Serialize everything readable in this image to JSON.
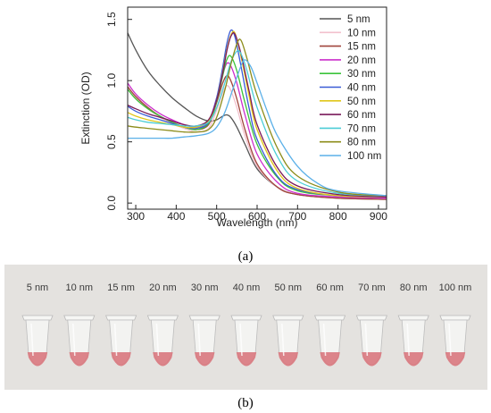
{
  "panel_labels": {
    "a": "(a)",
    "b": "(b)"
  },
  "chart_data": {
    "type": "line",
    "xlabel": "Wavelength (nm)",
    "ylabel": "Extinction (OD)",
    "xlim": [
      280,
      920
    ],
    "ylim": [
      -0.05,
      1.6
    ],
    "x_ticks": [
      300,
      400,
      500,
      600,
      700,
      800,
      900
    ],
    "y_ticks": [
      0.0,
      0.5,
      1.0,
      1.5
    ],
    "x_tick_labels": [
      "300",
      "400",
      "500",
      "600",
      "700",
      "800",
      "900"
    ],
    "y_tick_labels": [
      "0.0",
      "0.5",
      "1.0",
      "1.5"
    ],
    "grid": false,
    "legend_position": "top-right",
    "series": [
      {
        "name": "5 nm",
        "color": "#555555",
        "points": [
          [
            280,
            1.39
          ],
          [
            300,
            1.25
          ],
          [
            330,
            1.08
          ],
          [
            360,
            0.96
          ],
          [
            390,
            0.86
          ],
          [
            420,
            0.78
          ],
          [
            450,
            0.71
          ],
          [
            480,
            0.67
          ],
          [
            500,
            0.68
          ],
          [
            515,
            0.71
          ],
          [
            525,
            0.72
          ],
          [
            535,
            0.7
          ],
          [
            550,
            0.62
          ],
          [
            570,
            0.48
          ],
          [
            600,
            0.28
          ],
          [
            650,
            0.13
          ],
          [
            700,
            0.07
          ],
          [
            800,
            0.04
          ],
          [
            920,
            0.03
          ]
        ]
      },
      {
        "name": "10 nm",
        "color": "#f2c0cc",
        "points": [
          [
            280,
            0.95
          ],
          [
            300,
            0.86
          ],
          [
            330,
            0.77
          ],
          [
            360,
            0.7
          ],
          [
            390,
            0.65
          ],
          [
            420,
            0.61
          ],
          [
            450,
            0.58
          ],
          [
            480,
            0.61
          ],
          [
            500,
            0.76
          ],
          [
            515,
            0.9
          ],
          [
            525,
            0.96
          ],
          [
            535,
            0.92
          ],
          [
            550,
            0.78
          ],
          [
            570,
            0.55
          ],
          [
            600,
            0.3
          ],
          [
            650,
            0.13
          ],
          [
            700,
            0.07
          ],
          [
            800,
            0.04
          ],
          [
            920,
            0.03
          ]
        ]
      },
      {
        "name": "15 nm",
        "color": "#a0453c",
        "points": [
          [
            280,
            0.95
          ],
          [
            300,
            0.87
          ],
          [
            330,
            0.78
          ],
          [
            360,
            0.71
          ],
          [
            390,
            0.66
          ],
          [
            420,
            0.62
          ],
          [
            450,
            0.6
          ],
          [
            480,
            0.64
          ],
          [
            500,
            0.82
          ],
          [
            515,
            0.98
          ],
          [
            525,
            1.04
          ],
          [
            535,
            1.0
          ],
          [
            550,
            0.85
          ],
          [
            570,
            0.6
          ],
          [
            600,
            0.32
          ],
          [
            650,
            0.13
          ],
          [
            700,
            0.07
          ],
          [
            800,
            0.04
          ],
          [
            920,
            0.03
          ]
        ]
      },
      {
        "name": "20 nm",
        "color": "#cc2fcc",
        "points": [
          [
            280,
            0.98
          ],
          [
            300,
            0.89
          ],
          [
            330,
            0.8
          ],
          [
            360,
            0.73
          ],
          [
            390,
            0.68
          ],
          [
            420,
            0.64
          ],
          [
            450,
            0.62
          ],
          [
            480,
            0.67
          ],
          [
            500,
            0.86
          ],
          [
            515,
            1.05
          ],
          [
            525,
            1.14
          ],
          [
            535,
            1.12
          ],
          [
            550,
            0.98
          ],
          [
            570,
            0.72
          ],
          [
            600,
            0.4
          ],
          [
            650,
            0.17
          ],
          [
            700,
            0.08
          ],
          [
            800,
            0.05
          ],
          [
            920,
            0.04
          ]
        ]
      },
      {
        "name": "30 nm",
        "color": "#3ac33a",
        "points": [
          [
            280,
            0.93
          ],
          [
            300,
            0.85
          ],
          [
            330,
            0.77
          ],
          [
            360,
            0.71
          ],
          [
            390,
            0.66
          ],
          [
            420,
            0.62
          ],
          [
            450,
            0.6
          ],
          [
            480,
            0.65
          ],
          [
            500,
            0.83
          ],
          [
            515,
            1.04
          ],
          [
            525,
            1.17
          ],
          [
            535,
            1.2
          ],
          [
            550,
            1.08
          ],
          [
            570,
            0.82
          ],
          [
            600,
            0.48
          ],
          [
            650,
            0.21
          ],
          [
            700,
            0.1
          ],
          [
            800,
            0.06
          ],
          [
            920,
            0.05
          ]
        ]
      },
      {
        "name": "40 nm",
        "color": "#3a5bd6",
        "points": [
          [
            280,
            0.79
          ],
          [
            300,
            0.75
          ],
          [
            330,
            0.71
          ],
          [
            360,
            0.68
          ],
          [
            390,
            0.65
          ],
          [
            420,
            0.62
          ],
          [
            450,
            0.61
          ],
          [
            480,
            0.66
          ],
          [
            500,
            0.86
          ],
          [
            515,
            1.11
          ],
          [
            525,
            1.3
          ],
          [
            535,
            1.41
          ],
          [
            545,
            1.36
          ],
          [
            560,
            1.12
          ],
          [
            580,
            0.78
          ],
          [
            600,
            0.52
          ],
          [
            650,
            0.22
          ],
          [
            700,
            0.11
          ],
          [
            800,
            0.06
          ],
          [
            920,
            0.05
          ]
        ]
      },
      {
        "name": "50 nm",
        "color": "#e0c61a",
        "points": [
          [
            280,
            0.74
          ],
          [
            300,
            0.71
          ],
          [
            330,
            0.68
          ],
          [
            360,
            0.66
          ],
          [
            390,
            0.64
          ],
          [
            420,
            0.62
          ],
          [
            450,
            0.62
          ],
          [
            480,
            0.67
          ],
          [
            500,
            0.84
          ],
          [
            515,
            1.07
          ],
          [
            525,
            1.25
          ],
          [
            535,
            1.37
          ],
          [
            545,
            1.39
          ],
          [
            560,
            1.2
          ],
          [
            580,
            0.88
          ],
          [
            600,
            0.6
          ],
          [
            650,
            0.26
          ],
          [
            700,
            0.12
          ],
          [
            800,
            0.06
          ],
          [
            920,
            0.05
          ]
        ]
      },
      {
        "name": "60 nm",
        "color": "#7a1a5a",
        "points": [
          [
            280,
            0.8
          ],
          [
            300,
            0.77
          ],
          [
            330,
            0.73
          ],
          [
            360,
            0.7
          ],
          [
            390,
            0.67
          ],
          [
            420,
            0.64
          ],
          [
            450,
            0.63
          ],
          [
            480,
            0.68
          ],
          [
            500,
            0.84
          ],
          [
            515,
            1.06
          ],
          [
            525,
            1.24
          ],
          [
            535,
            1.36
          ],
          [
            545,
            1.38
          ],
          [
            560,
            1.22
          ],
          [
            580,
            0.92
          ],
          [
            600,
            0.64
          ],
          [
            650,
            0.29
          ],
          [
            700,
            0.14
          ],
          [
            800,
            0.07
          ],
          [
            920,
            0.05
          ]
        ]
      },
      {
        "name": "70 nm",
        "color": "#4ccdd6",
        "points": [
          [
            280,
            0.7
          ],
          [
            300,
            0.68
          ],
          [
            330,
            0.66
          ],
          [
            360,
            0.65
          ],
          [
            390,
            0.64
          ],
          [
            420,
            0.63
          ],
          [
            450,
            0.63
          ],
          [
            480,
            0.66
          ],
          [
            500,
            0.78
          ],
          [
            520,
            0.98
          ],
          [
            535,
            1.15
          ],
          [
            550,
            1.24
          ],
          [
            560,
            1.22
          ],
          [
            575,
            1.08
          ],
          [
            600,
            0.78
          ],
          [
            650,
            0.38
          ],
          [
            700,
            0.18
          ],
          [
            800,
            0.08
          ],
          [
            920,
            0.06
          ]
        ]
      },
      {
        "name": "80 nm",
        "color": "#8c8c1a",
        "points": [
          [
            280,
            0.63
          ],
          [
            300,
            0.62
          ],
          [
            330,
            0.61
          ],
          [
            360,
            0.6
          ],
          [
            390,
            0.59
          ],
          [
            420,
            0.58
          ],
          [
            450,
            0.58
          ],
          [
            480,
            0.6
          ],
          [
            500,
            0.7
          ],
          [
            520,
            0.92
          ],
          [
            535,
            1.13
          ],
          [
            550,
            1.3
          ],
          [
            560,
            1.33
          ],
          [
            575,
            1.18
          ],
          [
            600,
            0.88
          ],
          [
            650,
            0.45
          ],
          [
            700,
            0.22
          ],
          [
            800,
            0.09
          ],
          [
            920,
            0.06
          ]
        ]
      },
      {
        "name": "100 nm",
        "color": "#5bb0e8",
        "points": [
          [
            280,
            0.53
          ],
          [
            300,
            0.53
          ],
          [
            330,
            0.53
          ],
          [
            360,
            0.53
          ],
          [
            390,
            0.53
          ],
          [
            420,
            0.54
          ],
          [
            450,
            0.55
          ],
          [
            480,
            0.57
          ],
          [
            500,
            0.62
          ],
          [
            520,
            0.74
          ],
          [
            540,
            0.93
          ],
          [
            560,
            1.12
          ],
          [
            570,
            1.17
          ],
          [
            585,
            1.11
          ],
          [
            600,
            0.98
          ],
          [
            625,
            0.75
          ],
          [
            650,
            0.55
          ],
          [
            700,
            0.3
          ],
          [
            750,
            0.16
          ],
          [
            800,
            0.1
          ],
          [
            920,
            0.06
          ]
        ]
      }
    ]
  },
  "photo": {
    "tube_labels": [
      "5 nm",
      "10 nm",
      "15 nm",
      "20 nm",
      "30 nm",
      "40 nm",
      "50 nm",
      "60 nm",
      "70 nm",
      "80 nm",
      "100 nm"
    ],
    "background_color": "#e4e2df",
    "liquid_color": "#d9787e"
  }
}
